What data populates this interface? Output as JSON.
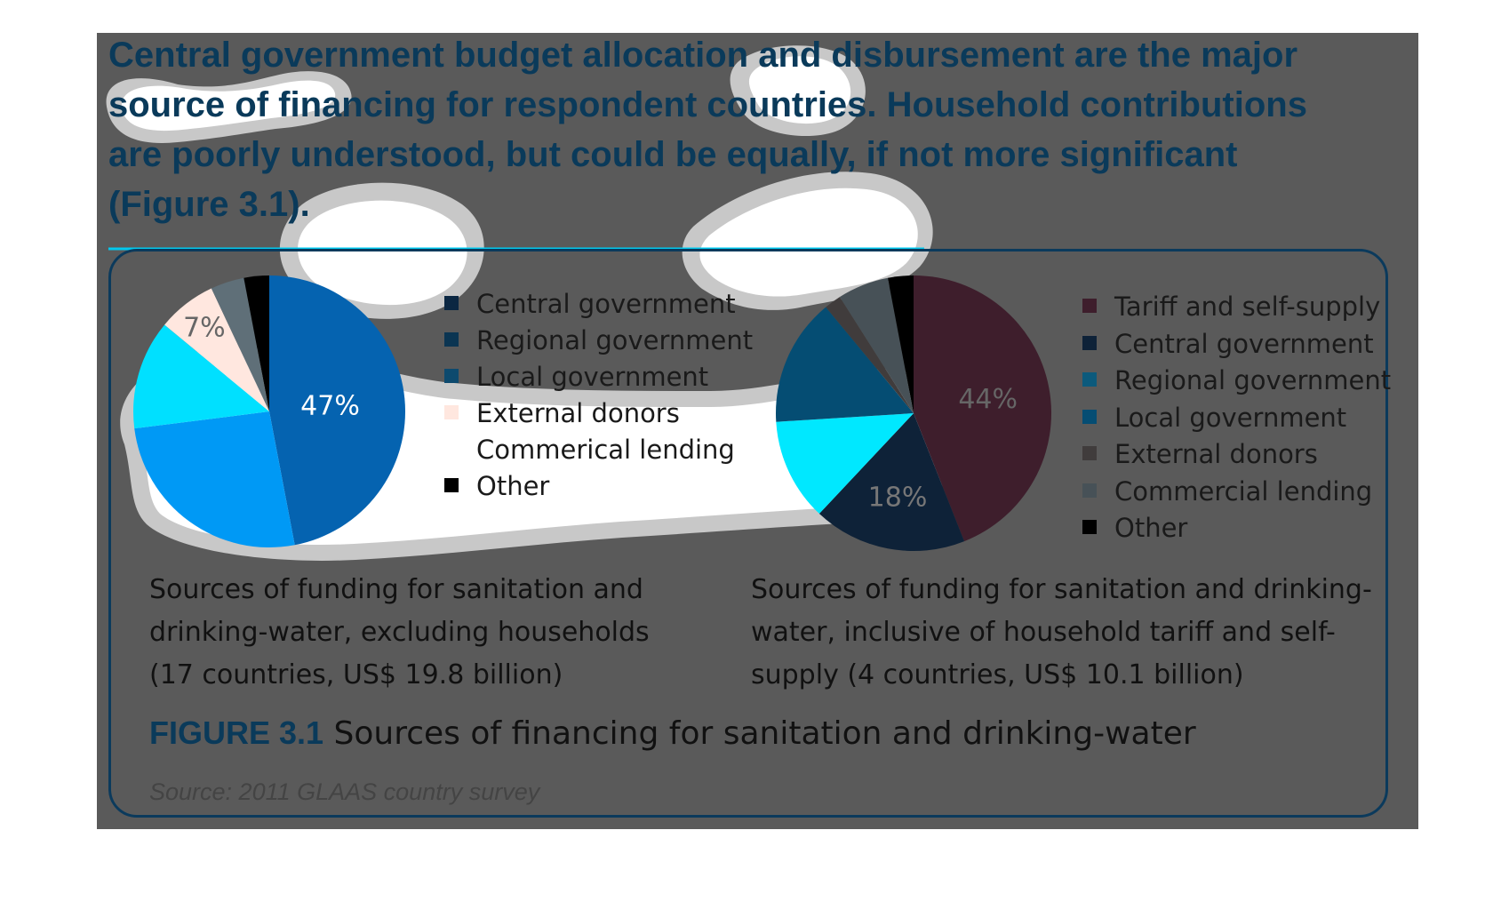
{
  "headline": "Central government budget allocation and disbursement are the major source of financing for respondent countries. Household contributions are poorly understood, but could be equally, if not more significant (Figure 3.1).",
  "figure": {
    "label": "FIGURE 3.1",
    "title": "Sources of financing for sanitation and drinking-water",
    "source": "Source: 2011 GLAAS country survey"
  },
  "chart_data": [
    {
      "type": "pie",
      "caption": "Sources of funding for sanitation and drinking-water, excluding households (17 countries, US$ 19.8 billion)",
      "slices": [
        {
          "label": "Central government",
          "value": 47,
          "color": "#0563b0",
          "data_label": "47%"
        },
        {
          "label": "Regional government",
          "value": 26,
          "color": "#0099f5",
          "data_label": ""
        },
        {
          "label": "Local government",
          "value": 13,
          "color": "#00e0ff",
          "data_label": ""
        },
        {
          "label": "External donors",
          "value": 7,
          "color": "#ffe7df",
          "data_label": "7%"
        },
        {
          "label": "Commerical lending",
          "value": 4,
          "color": "#5f6f78",
          "data_label": ""
        },
        {
          "label": "Other",
          "value": 3,
          "color": "#000000",
          "data_label": ""
        }
      ],
      "legend": [
        {
          "label": "Central government",
          "color": "#0b2742"
        },
        {
          "label": "Regional government",
          "color": "#0b3552"
        },
        {
          "label": "Local government",
          "color": "#0d4a6e"
        },
        {
          "label": "External donors",
          "color": "#ffe7df"
        },
        {
          "label": "Commerical lending",
          "color": "#ffffff"
        },
        {
          "label": "Other",
          "color": "#000000"
        }
      ]
    },
    {
      "type": "pie",
      "caption": "Sources of funding for sanitation and drinking-water, inclusive of household tariff and self-supply (4 countries, US$ 10.1 billion)",
      "slices": [
        {
          "label": "Tariff and self-supply",
          "value": 44,
          "color": "#3e1e2c",
          "data_label": "44%"
        },
        {
          "label": "Central government",
          "value": 18,
          "color": "#0e2238",
          "data_label": "18%"
        },
        {
          "label": "Regional government",
          "value": 12,
          "color": "#00e8ff",
          "data_label": ""
        },
        {
          "label": "Local government",
          "value": 15,
          "color": "#054d73",
          "data_label": ""
        },
        {
          "label": "External donors",
          "value": 2,
          "color": "#403c3c",
          "data_label": ""
        },
        {
          "label": "Commercial lending",
          "value": 6,
          "color": "#475157",
          "data_label": ""
        },
        {
          "label": "Other",
          "value": 3,
          "color": "#000000",
          "data_label": ""
        }
      ],
      "legend": [
        {
          "label": "Tariff and self-supply",
          "color": "#3e1e2c"
        },
        {
          "label": "Central government",
          "color": "#0e2238"
        },
        {
          "label": "Regional government",
          "color": "#0c5a7c"
        },
        {
          "label": "Local government",
          "color": "#054d73"
        },
        {
          "label": "External donors",
          "color": "#403c3c"
        },
        {
          "label": "Commercial lending",
          "color": "#475157"
        },
        {
          "label": "Other",
          "color": "#000000"
        }
      ]
    }
  ]
}
